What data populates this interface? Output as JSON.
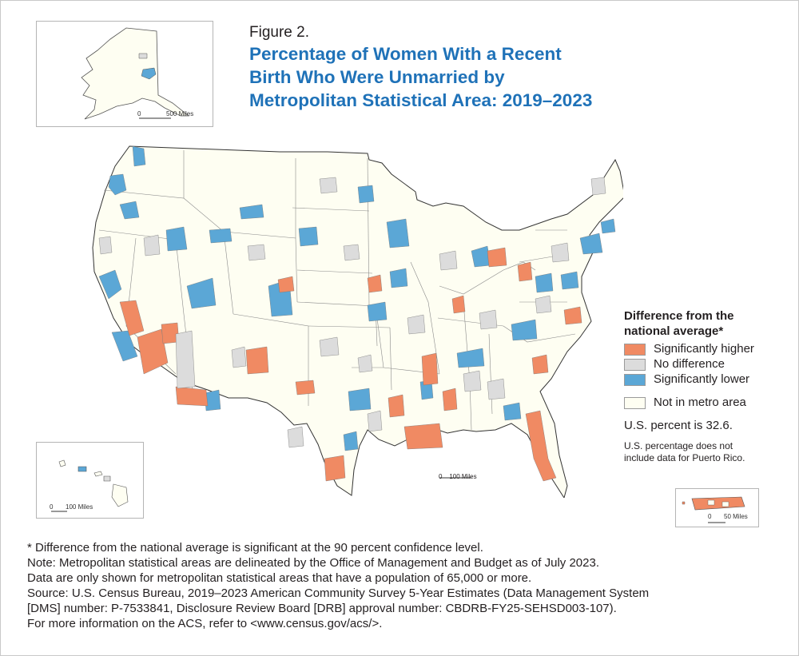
{
  "figure_label": "Figure 2.",
  "title_lines": [
    "Percentage of Women With a Recent",
    "Birth Who Were Unmarried by",
    "Metropolitan Statistical Area: 2019–2023"
  ],
  "legend": {
    "title_lines": [
      "Difference from the",
      "national average*"
    ],
    "items": [
      {
        "label": "Significantly higher",
        "color": "#f08a63"
      },
      {
        "label": "No difference",
        "color": "#dcdcdc"
      },
      {
        "label": "Significantly lower",
        "color": "#5ba7d6"
      }
    ],
    "not_in_metro": {
      "label": "Not in metro area",
      "color": "#fefef2"
    },
    "us_percent": "U.S. percent is 32.6.",
    "pr_note_lines": [
      "U.S. percentage does not",
      "include data for Puerto Rico."
    ]
  },
  "scales": {
    "alaska": "500 Miles",
    "hawaii": "100 Miles",
    "conus": "100 Miles",
    "puerto_rico": "50 Miles",
    "zero": "0"
  },
  "notes": [
    "* Difference from the national average is significant at the 90 percent confidence level.",
    "Note: Metropolitan statistical areas are delineated by the Office of Management and Budget as of July 2023.",
    "Data are only shown for metropolitan statistical areas that have a population of 65,000 or more.",
    "Source: U.S. Census Bureau, 2019–2023 American Community Survey 5-Year Estimates (Data Management System",
    "[DMS] number: P-7533841, Disclosure Review Board [DRB] approval number: CBDRB-FY25-SEHSD003-107).",
    "For more information on the ACS, refer to <www.census.gov/acs/>."
  ],
  "colors": {
    "higher": "#f08a63",
    "nodiff": "#dcdcdc",
    "lower": "#5ba7d6",
    "land": "#fefef2",
    "title": "#1f72b8"
  }
}
